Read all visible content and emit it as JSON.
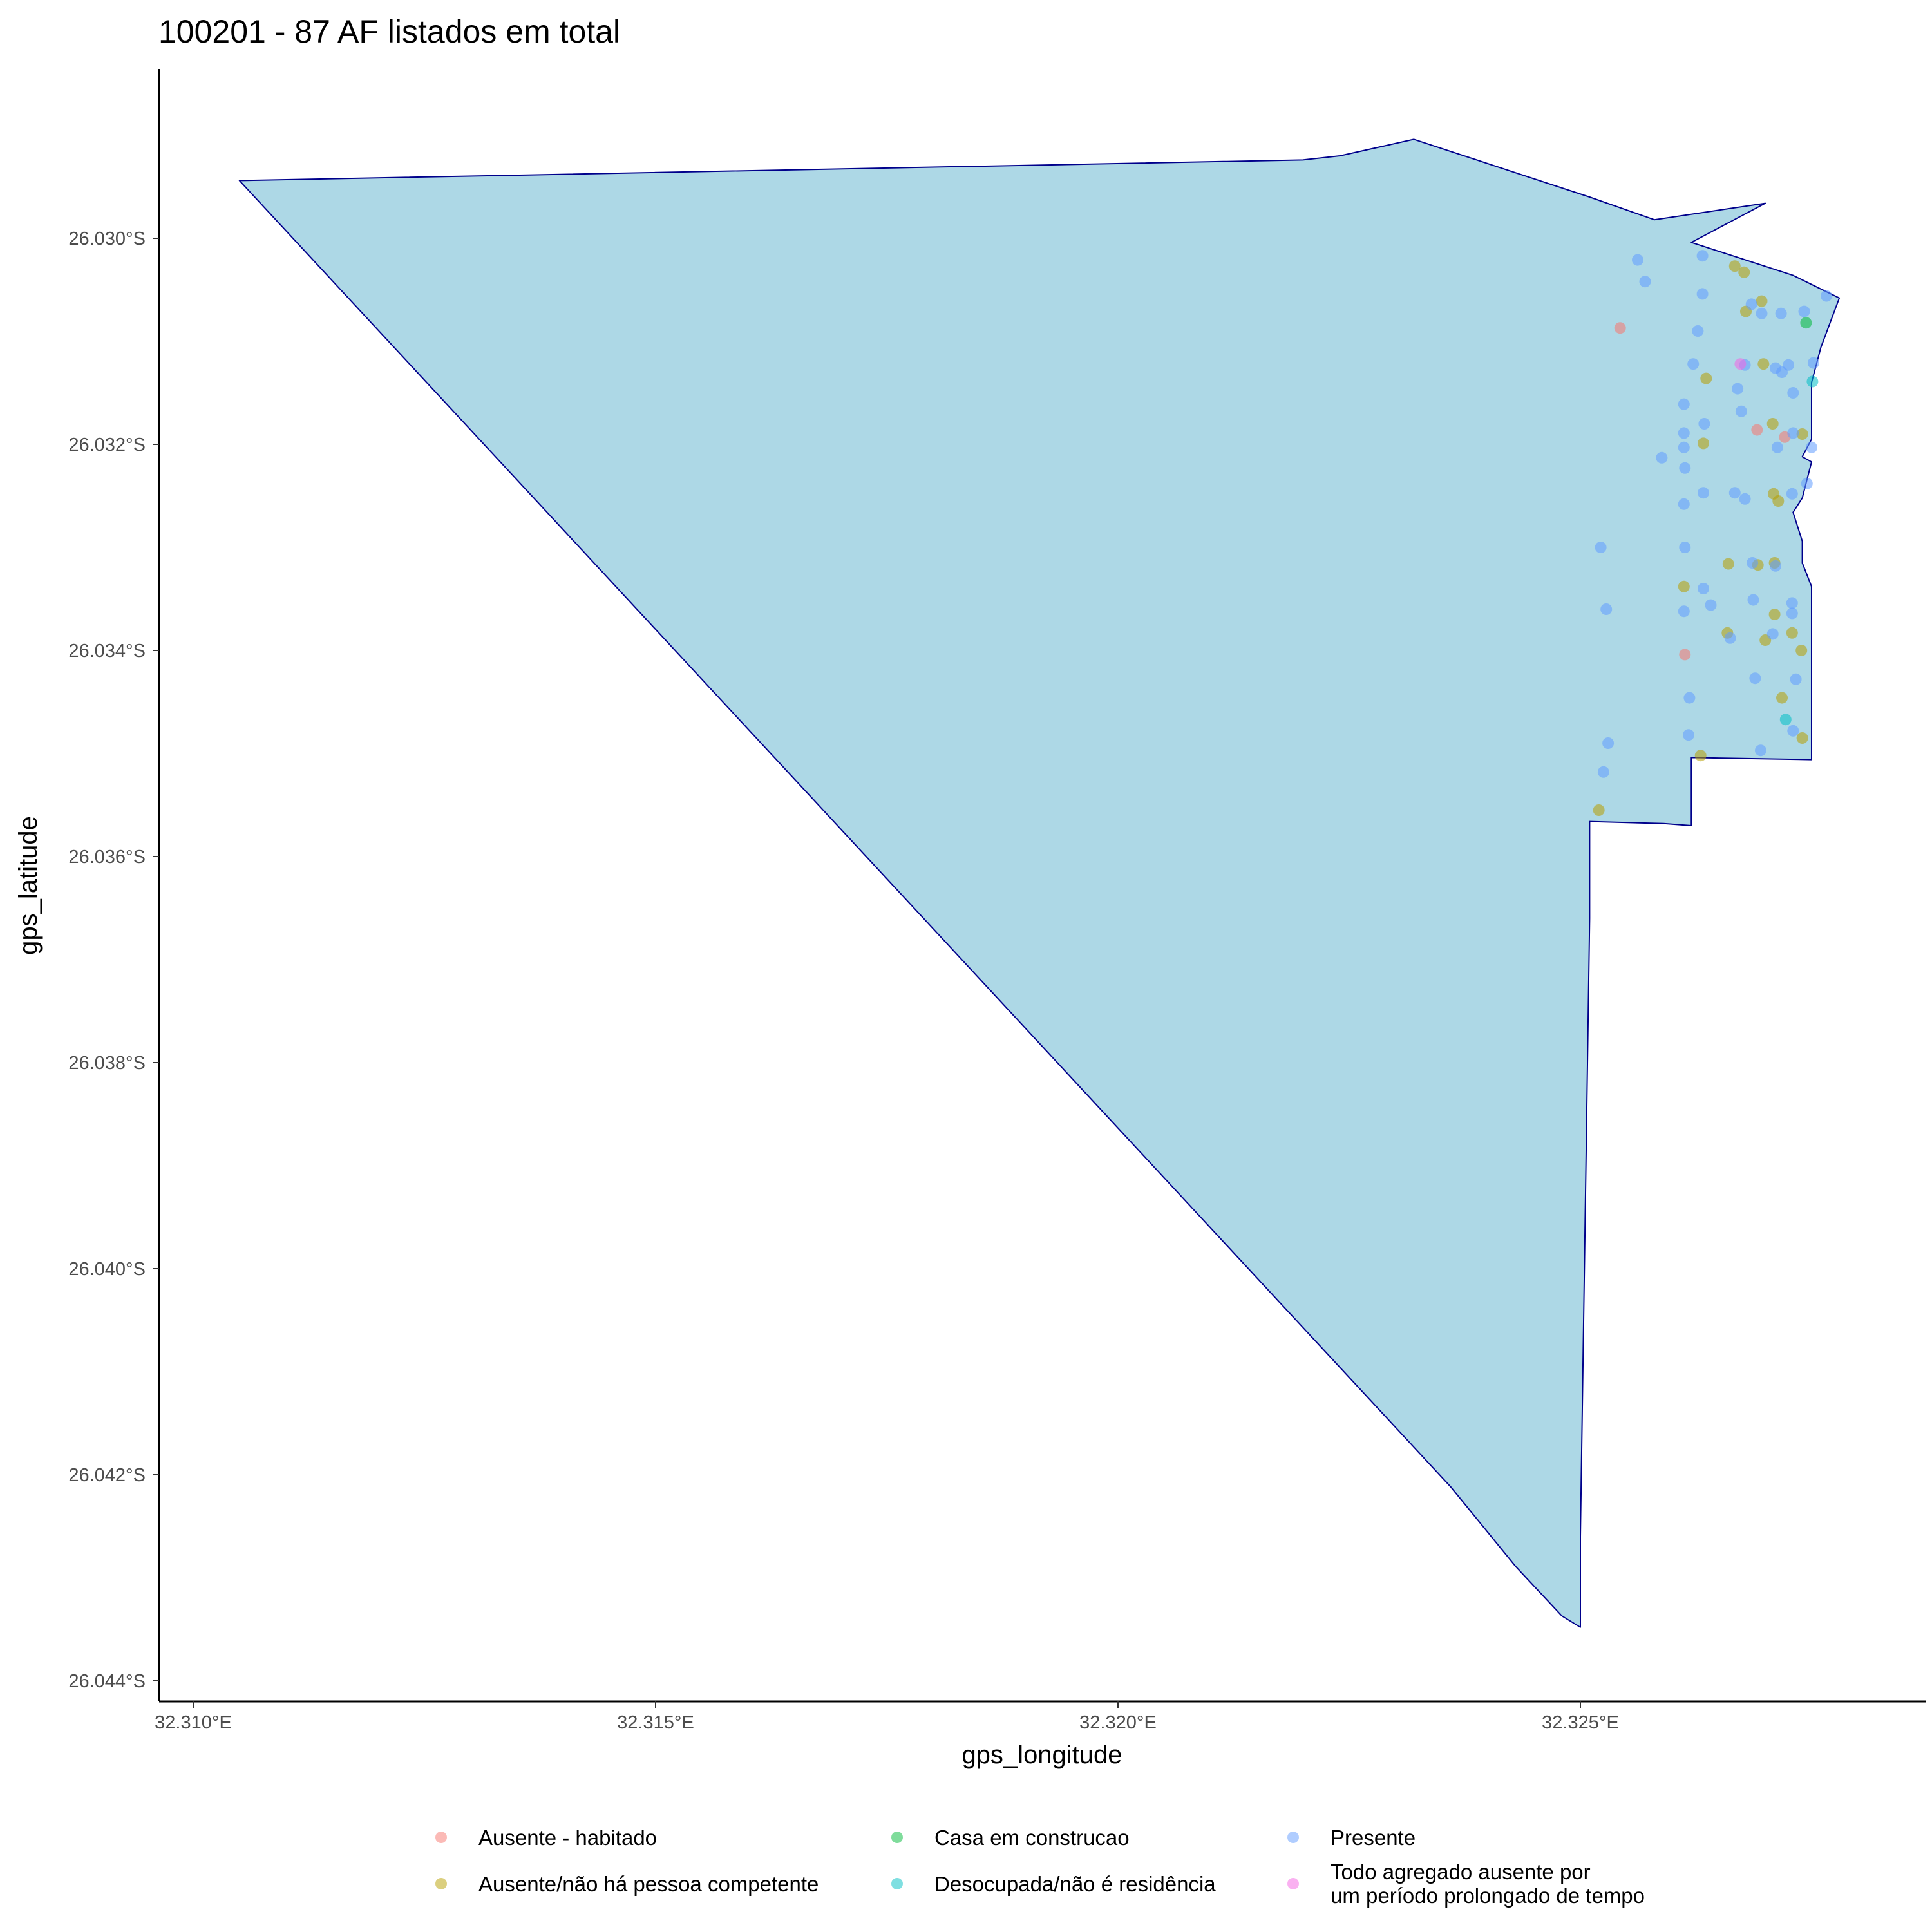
{
  "chart_data": {
    "type": "scatter",
    "title": "100201 - 87 AF listados em total",
    "xlabel": "gps_longitude",
    "ylabel": "gps_latitude",
    "xlim": [
      32.3096,
      32.3287
    ],
    "ylim": [
      -26.0442,
      -26.0284
    ],
    "x_ticks": [
      {
        "value": 32.31,
        "label": "32.310°E"
      },
      {
        "value": 32.315,
        "label": "32.315°E"
      },
      {
        "value": 32.32,
        "label": "32.320°E"
      },
      {
        "value": 32.325,
        "label": "32.325°E"
      }
    ],
    "y_ticks": [
      {
        "value": -26.03,
        "label": "26.030°S"
      },
      {
        "value": -26.032,
        "label": "26.032°S"
      },
      {
        "value": -26.034,
        "label": "26.034°S"
      },
      {
        "value": -26.036,
        "label": "26.036°S"
      },
      {
        "value": -26.038,
        "label": "26.038°S"
      },
      {
        "value": -26.04,
        "label": "26.040°S"
      },
      {
        "value": -26.042,
        "label": "26.042°S"
      },
      {
        "value": -26.044,
        "label": "26.044°S"
      }
    ],
    "grid": false,
    "legend_position": "bottom",
    "boundary": {
      "fill": "#ADD8E6",
      "stroke": "#00008B",
      "points": [
        [
          32.3105,
          -26.02944
        ],
        [
          32.322,
          -26.02924
        ],
        [
          32.3224,
          -26.0292
        ],
        [
          32.3232,
          -26.02904
        ],
        [
          32.3251,
          -26.0296
        ],
        [
          32.3258,
          -26.02982
        ],
        [
          32.327,
          -26.02966
        ],
        [
          32.3262,
          -26.03004
        ],
        [
          32.3273,
          -26.03036
        ],
        [
          32.3278,
          -26.03058
        ],
        [
          32.3276,
          -26.03106
        ],
        [
          32.3275,
          -26.0314
        ],
        [
          32.3275,
          -26.03195
        ],
        [
          32.3274,
          -26.03212
        ],
        [
          32.3275,
          -26.03217
        ],
        [
          32.3274,
          -26.03252
        ],
        [
          32.3273,
          -26.03266
        ],
        [
          32.3274,
          -26.03294
        ],
        [
          32.3274,
          -26.03315
        ],
        [
          32.3275,
          -26.03338
        ],
        [
          32.3275,
          -26.03397
        ],
        [
          32.3275,
          -26.03506
        ],
        [
          32.3262,
          -26.03504
        ],
        [
          32.3262,
          -26.0357
        ],
        [
          32.3259,
          -26.03568
        ],
        [
          32.3251,
          -26.03566
        ],
        [
          32.3251,
          -26.0366
        ],
        [
          32.325,
          -26.0426
        ],
        [
          32.325,
          -26.04348
        ],
        [
          32.3248,
          -26.04337
        ],
        [
          32.3243,
          -26.04289
        ],
        [
          32.3236,
          -26.04212
        ],
        [
          32.3105,
          -26.02944
        ]
      ]
    },
    "series": [
      {
        "name": "Ausente - habitado",
        "color": "#F8766D",
        "points": [
          [
            32.32543,
            -26.03087
          ],
          [
            32.32613,
            -26.03404
          ],
          [
            32.32691,
            -26.03186
          ],
          [
            32.32721,
            -26.03193
          ]
        ]
      },
      {
        "name": "Ausente/não há pessoa competente",
        "color": "#B79F00",
        "points": [
          [
            32.32667,
            -26.03027
          ],
          [
            32.32677,
            -26.03033
          ],
          [
            32.32679,
            -26.03071
          ],
          [
            32.32696,
            -26.03061
          ],
          [
            32.32698,
            -26.03122
          ],
          [
            32.32636,
            -26.03136
          ],
          [
            32.32708,
            -26.0318
          ],
          [
            32.32633,
            -26.03199
          ],
          [
            32.3274,
            -26.0319
          ],
          [
            32.32709,
            -26.03248
          ],
          [
            32.32714,
            -26.03255
          ],
          [
            32.3266,
            -26.03316
          ],
          [
            32.32612,
            -26.03338
          ],
          [
            32.32692,
            -26.03317
          ],
          [
            32.3271,
            -26.03315
          ],
          [
            32.3271,
            -26.03365
          ],
          [
            32.32659,
            -26.03383
          ],
          [
            32.327,
            -26.0339
          ],
          [
            32.32729,
            -26.03383
          ],
          [
            32.32739,
            -26.034
          ],
          [
            32.32718,
            -26.03446
          ],
          [
            32.3274,
            -26.03485
          ],
          [
            32.3263,
            -26.03502
          ],
          [
            32.3252,
            -26.03555
          ]
        ]
      },
      {
        "name": "Casa em construcao",
        "color": "#00BA38",
        "points": [
          [
            32.32744,
            -26.03082
          ]
        ]
      },
      {
        "name": "Desocupada/não é residência",
        "color": "#00BFC4",
        "points": [
          [
            32.32751,
            -26.03139
          ],
          [
            32.32722,
            -26.03467
          ]
        ]
      },
      {
        "name": "Presente",
        "color": "#619CFF",
        "points": [
          [
            32.32562,
            -26.03021
          ],
          [
            32.3257,
            -26.03042
          ],
          [
            32.32632,
            -26.03017
          ],
          [
            32.32632,
            -26.03054
          ],
          [
            32.32685,
            -26.03064
          ],
          [
            32.32696,
            -26.03073
          ],
          [
            32.32717,
            -26.03073
          ],
          [
            32.32742,
            -26.03071
          ],
          [
            32.32766,
            -26.03056
          ],
          [
            32.32627,
            -26.0309
          ],
          [
            32.32622,
            -26.03122
          ],
          [
            32.32678,
            -26.03123
          ],
          [
            32.32711,
            -26.03126
          ],
          [
            32.32718,
            -26.0313
          ],
          [
            32.32725,
            -26.03123
          ],
          [
            32.32752,
            -26.03121
          ],
          [
            32.3267,
            -26.03146
          ],
          [
            32.3273,
            -26.0315
          ],
          [
            32.32612,
            -26.03161
          ],
          [
            32.32674,
            -26.03168
          ],
          [
            32.32634,
            -26.0318
          ],
          [
            32.32612,
            -26.03189
          ],
          [
            32.3273,
            -26.03189
          ],
          [
            32.32612,
            -26.03203
          ],
          [
            32.32713,
            -26.03203
          ],
          [
            32.3275,
            -26.03203
          ],
          [
            32.32588,
            -26.03213
          ],
          [
            32.32613,
            -26.03223
          ],
          [
            32.32633,
            -26.03247
          ],
          [
            32.32667,
            -26.03247
          ],
          [
            32.32678,
            -26.03253
          ],
          [
            32.32729,
            -26.03248
          ],
          [
            32.32745,
            -26.03238
          ],
          [
            32.32612,
            -26.03258
          ],
          [
            32.32522,
            -26.033
          ],
          [
            32.32613,
            -26.033
          ],
          [
            32.32686,
            -26.03315
          ],
          [
            32.32711,
            -26.03318
          ],
          [
            32.32633,
            -26.0334
          ],
          [
            32.32729,
            -26.03354
          ],
          [
            32.32528,
            -26.0336
          ],
          [
            32.32612,
            -26.03362
          ],
          [
            32.32641,
            -26.03356
          ],
          [
            32.32687,
            -26.03351
          ],
          [
            32.32729,
            -26.03364
          ],
          [
            32.32662,
            -26.03388
          ],
          [
            32.32708,
            -26.03384
          ],
          [
            32.32689,
            -26.03427
          ],
          [
            32.32733,
            -26.03428
          ],
          [
            32.32618,
            -26.03446
          ],
          [
            32.32617,
            -26.03482
          ],
          [
            32.3273,
            -26.03478
          ],
          [
            32.32695,
            -26.03497
          ],
          [
            32.3253,
            -26.0349
          ],
          [
            32.32525,
            -26.03518
          ]
        ]
      },
      {
        "name": "Todo agregado ausente por\num período prolongado de tempo",
        "color": "#F564E3",
        "points": [
          [
            32.32673,
            -26.03122
          ]
        ]
      }
    ]
  },
  "legend": {
    "items": [
      {
        "label": "Ausente - habitado",
        "color": "#F8766D"
      },
      {
        "label": "Ausente/não há pessoa competente",
        "color": "#B79F00"
      },
      {
        "label": "Casa em construcao",
        "color": "#00BA38"
      },
      {
        "label": "Desocupada/não é residência",
        "color": "#00BFC4"
      },
      {
        "label": "Presente",
        "color": "#619CFF"
      },
      {
        "label": "Todo agregado ausente por",
        "label_line2": "um período prolongado de tempo",
        "color": "#F564E3"
      }
    ]
  }
}
